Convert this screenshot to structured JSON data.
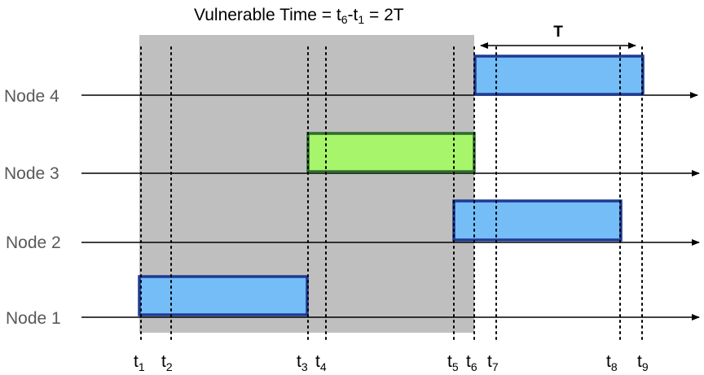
{
  "title": {
    "prefix": "Vulnerable Time = t",
    "sub_a": "6",
    "middle": "-t",
    "sub_b": "1",
    "suffix": " = 2T"
  },
  "duration_label": "T",
  "nodes": [
    {
      "id": "node-4",
      "label": "Node 4"
    },
    {
      "id": "node-3",
      "label": "Node 3"
    },
    {
      "id": "node-2",
      "label": "Node 2"
    },
    {
      "id": "node-1",
      "label": "Node 1"
    }
  ],
  "time_markers": [
    {
      "id": "t1",
      "base": "t",
      "sub": "1"
    },
    {
      "id": "t2",
      "base": "t",
      "sub": "2"
    },
    {
      "id": "t3",
      "base": "t",
      "sub": "3"
    },
    {
      "id": "t4",
      "base": "t",
      "sub": "4"
    },
    {
      "id": "t5",
      "base": "t",
      "sub": "5"
    },
    {
      "id": "t6",
      "base": "t",
      "sub": "6"
    },
    {
      "id": "t7",
      "base": "t",
      "sub": "7"
    },
    {
      "id": "t8",
      "base": "t",
      "sub": "8"
    },
    {
      "id": "t9",
      "base": "t",
      "sub": "9"
    }
  ],
  "colors": {
    "vulnerable_region": "#bfbfbf",
    "frame_fill": "#74bdf7",
    "frame_border": "#1f3a93",
    "collision_fill": "#a6f56a",
    "collision_border": "#2f6b2f",
    "axis": "#000000",
    "node_label": "#595959"
  }
}
